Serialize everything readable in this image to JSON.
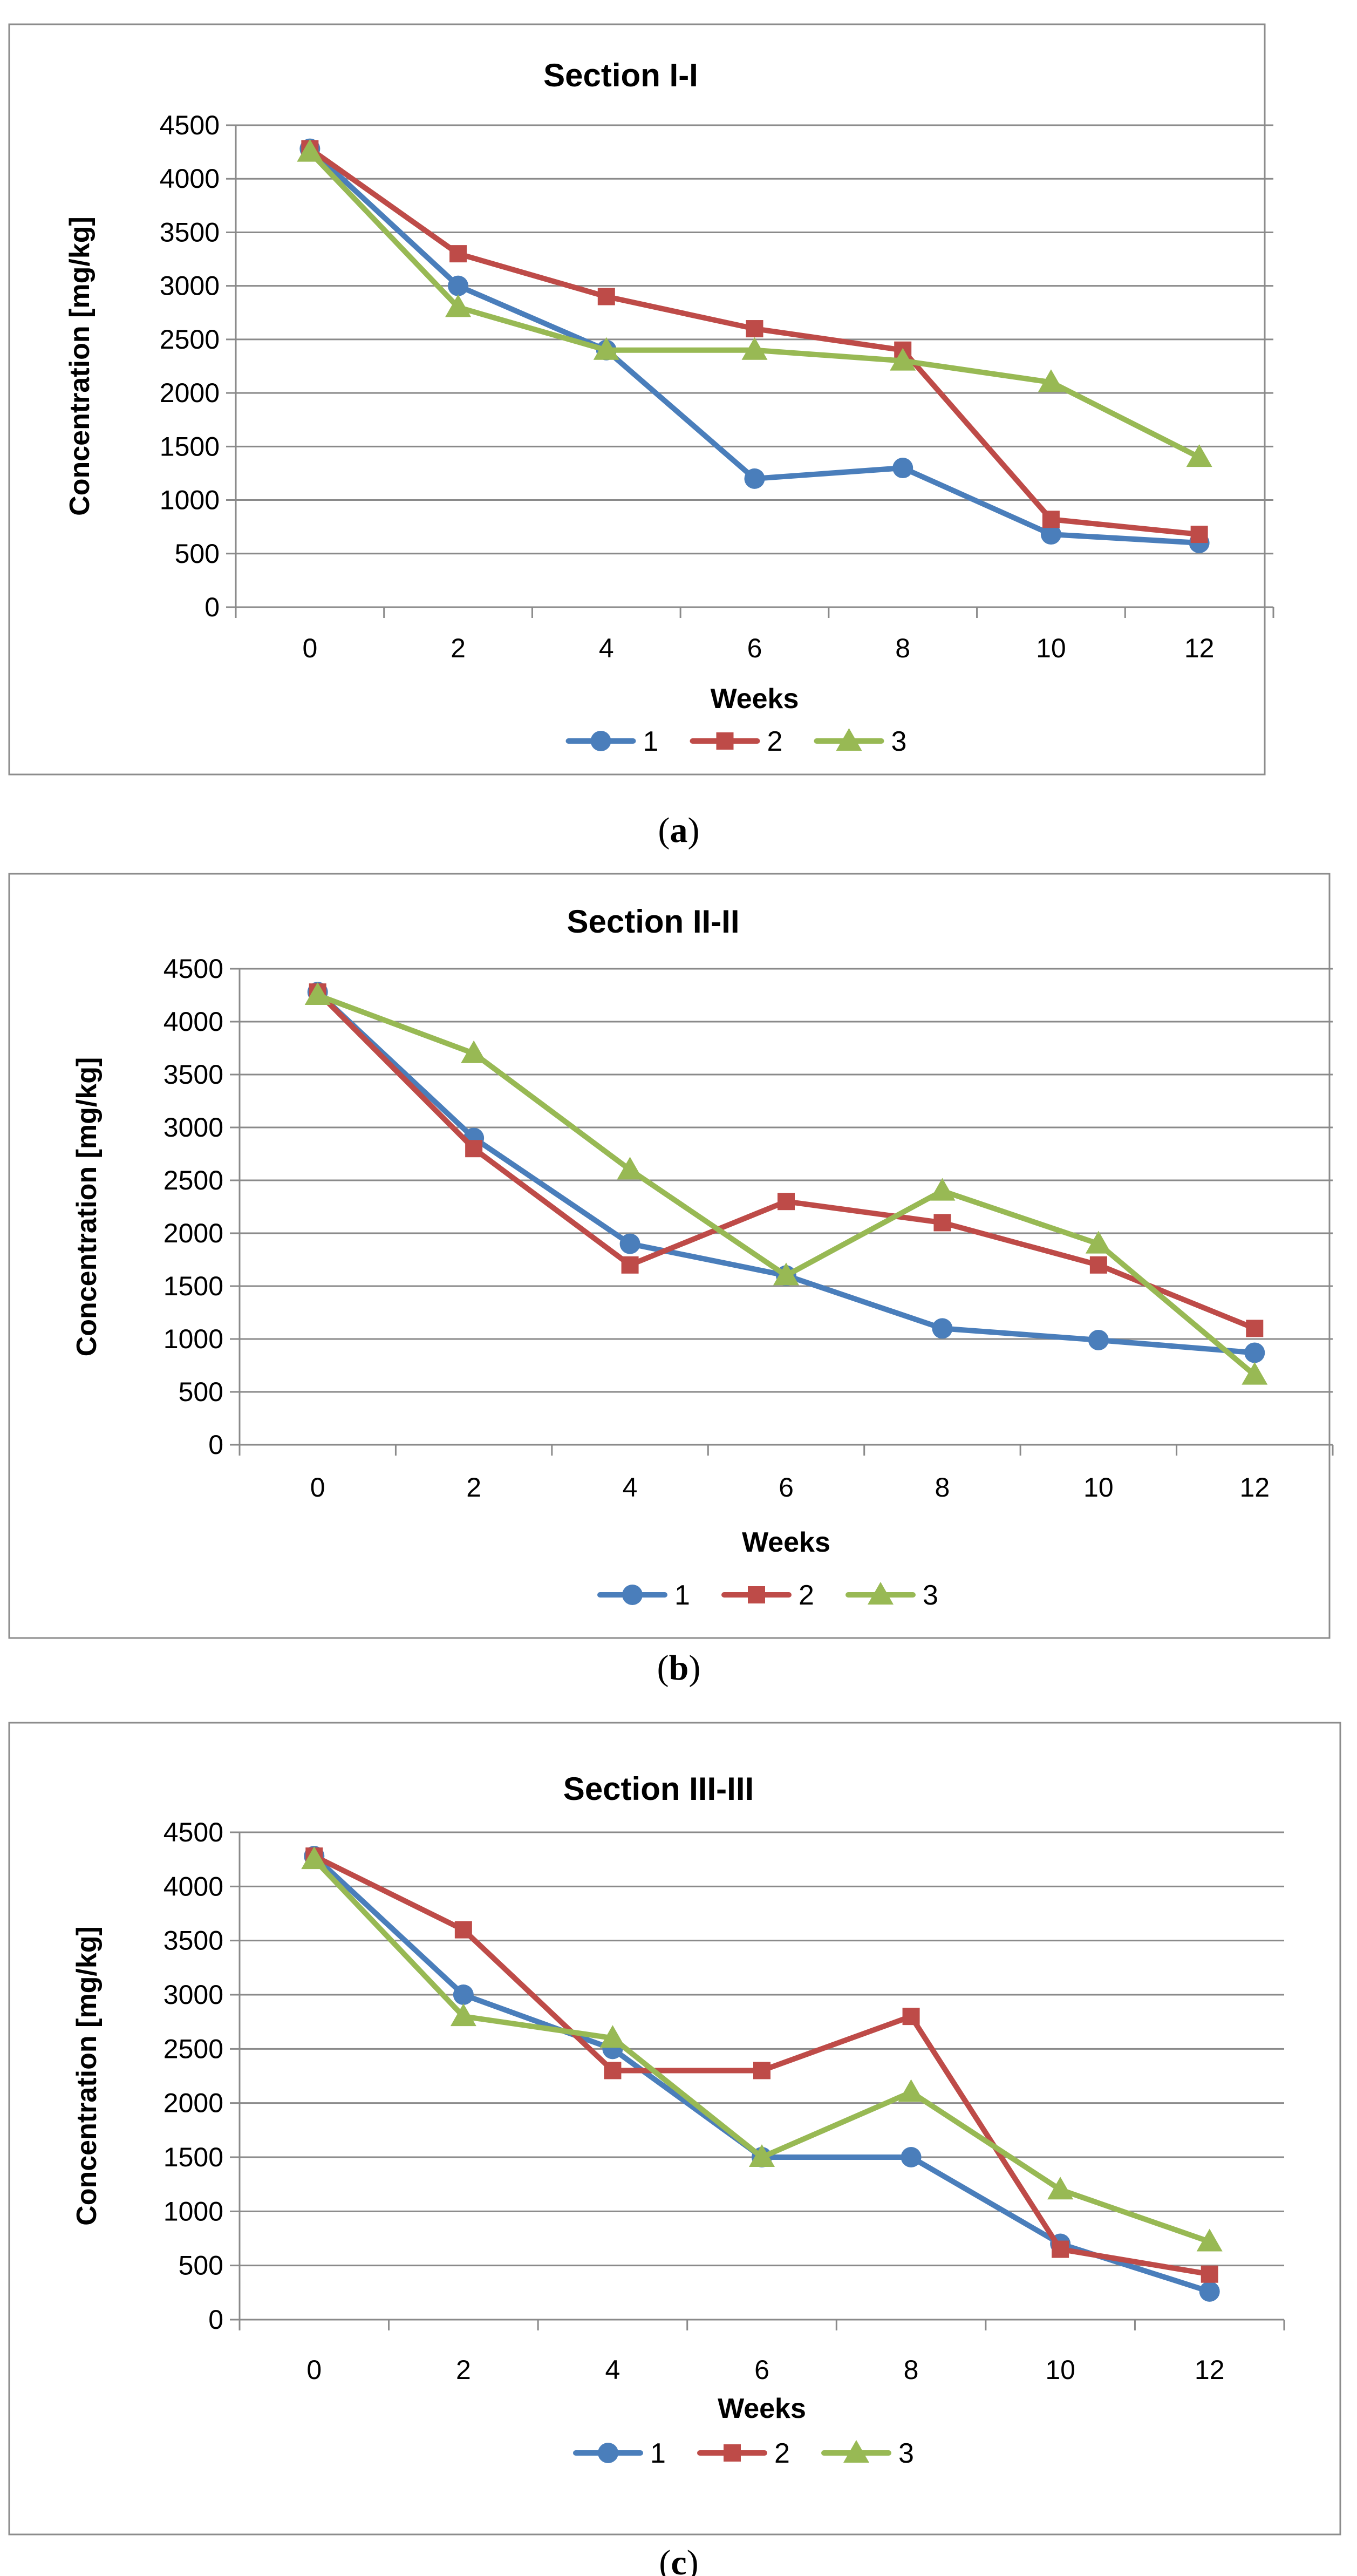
{
  "figure": {
    "captions": [
      "a",
      "b",
      "c"
    ]
  },
  "series_styles": [
    {
      "name": "1",
      "color": "#4a7ebb",
      "marker": "circle"
    },
    {
      "name": "2",
      "color": "#be4b48",
      "marker": "square"
    },
    {
      "name": "3",
      "color": "#98b954",
      "marker": "triangle"
    }
  ],
  "chart_data": [
    {
      "type": "line",
      "title": "Section I-I",
      "xlabel": "Weeks",
      "ylabel": "Concentration [mg/kg]",
      "categories": [
        "0",
        "2",
        "4",
        "6",
        "8",
        "10",
        "12"
      ],
      "yticks": [
        "0",
        "500",
        "1000",
        "1500",
        "2000",
        "2500",
        "3000",
        "3500",
        "4000",
        "4500"
      ],
      "ylim": [
        0,
        4500
      ],
      "grid": true,
      "legend": "bottom",
      "series": [
        {
          "name": "1",
          "values": [
            4280,
            3000,
            2400,
            1200,
            1300,
            680,
            600
          ]
        },
        {
          "name": "2",
          "values": [
            4280,
            3300,
            2900,
            2600,
            2400,
            820,
            680
          ]
        },
        {
          "name": "3",
          "values": [
            4250,
            2800,
            2400,
            2400,
            2300,
            2100,
            1400
          ]
        }
      ]
    },
    {
      "type": "line",
      "title": "Section II-II",
      "xlabel": "Weeks",
      "ylabel": "Concentration [mg/kg]",
      "categories": [
        "0",
        "2",
        "4",
        "6",
        "8",
        "10",
        "12"
      ],
      "yticks": [
        "0",
        "500",
        "1000",
        "1500",
        "2000",
        "2500",
        "3000",
        "3500",
        "4000",
        "4500"
      ],
      "ylim": [
        0,
        4500
      ],
      "grid": true,
      "legend": "bottom",
      "series": [
        {
          "name": "1",
          "values": [
            4280,
            2900,
            1900,
            1600,
            1100,
            990,
            870
          ]
        },
        {
          "name": "2",
          "values": [
            4280,
            2800,
            1700,
            2300,
            2100,
            1700,
            1100
          ]
        },
        {
          "name": "3",
          "values": [
            4250,
            3700,
            2600,
            1600,
            2400,
            1900,
            660
          ]
        }
      ]
    },
    {
      "type": "line",
      "title": "Section III-III",
      "xlabel": "Weeks",
      "ylabel": "Concentration [mg/kg]",
      "categories": [
        "0",
        "2",
        "4",
        "6",
        "8",
        "10",
        "12"
      ],
      "yticks": [
        "0",
        "500",
        "1000",
        "1500",
        "2000",
        "2500",
        "3000",
        "3500",
        "4000",
        "4500"
      ],
      "ylim": [
        0,
        4500
      ],
      "grid": true,
      "legend": "bottom",
      "series": [
        {
          "name": "1",
          "values": [
            4280,
            3000,
            2500,
            1500,
            1500,
            700,
            260
          ]
        },
        {
          "name": "2",
          "values": [
            4280,
            3600,
            2300,
            2300,
            2800,
            650,
            420
          ]
        },
        {
          "name": "3",
          "values": [
            4250,
            2800,
            2600,
            1500,
            2100,
            1200,
            720
          ]
        }
      ]
    }
  ]
}
